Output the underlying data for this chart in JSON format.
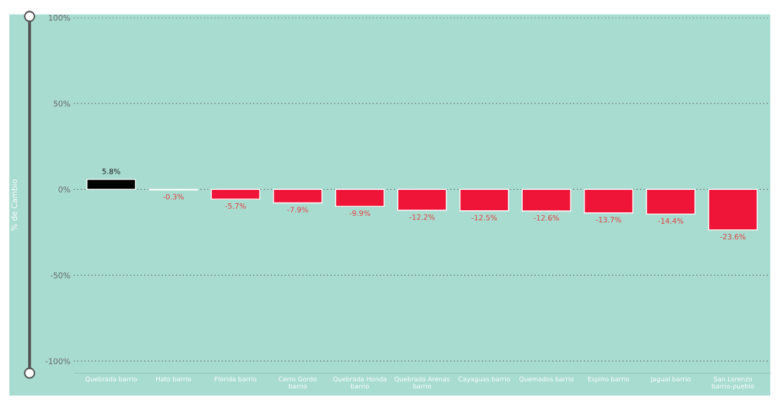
{
  "chart_data": {
    "type": "bar",
    "ylabel": "% de Cambio",
    "categories": [
      "Quebrada barrio",
      "Hato barrio",
      "Florida barrio",
      "Cerro Gordo\nbarrio",
      "Quebrada Honda\nbarrio",
      "Quebrada Arenas\nbarrio",
      "Cayaguas barrio",
      "Quemados barrio",
      "Espino barrio",
      "Jagual barrio",
      "San Lorenzo\nbarrio-pueblo"
    ],
    "values": [
      5.8,
      -0.3,
      -5.7,
      -7.9,
      -9.9,
      -12.2,
      -12.5,
      -12.6,
      -13.7,
      -14.4,
      -23.6
    ],
    "value_labels": [
      "5.8%",
      "-0.3%",
      "-5.7%",
      "-7.9%",
      "-9.9%",
      "-12.2%",
      "-12.5%",
      "-12.6%",
      "-13.7%",
      "-14.4%",
      "-23.6%"
    ],
    "colors": [
      "#000000",
      "#ee1538",
      "#ee1538",
      "#ee1538",
      "#ee1538",
      "#ee1538",
      "#ee1538",
      "#ee1538",
      "#ee1538",
      "#ee1538",
      "#ee1538"
    ],
    "ylim": [
      -107,
      100
    ],
    "yticks": [
      {
        "value": 100,
        "label": "100%"
      },
      {
        "value": 50,
        "label": "50%"
      },
      {
        "value": 0,
        "label": "0%"
      },
      {
        "value": -50,
        "label": "-50%"
      },
      {
        "value": -100,
        "label": "-100%"
      }
    ],
    "grid": "y"
  }
}
